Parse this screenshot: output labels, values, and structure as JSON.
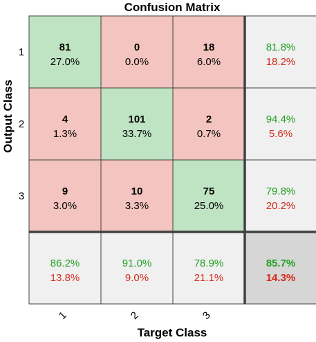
{
  "chart_data": {
    "type": "heatmap",
    "title": "Confusion Matrix",
    "xlabel": "Target Class",
    "ylabel": "Output Class",
    "classes": [
      "1",
      "2",
      "3"
    ],
    "cells": [
      [
        {
          "count": "81",
          "pct": "27.0%"
        },
        {
          "count": "0",
          "pct": "0.0%"
        },
        {
          "count": "18",
          "pct": "6.0%"
        }
      ],
      [
        {
          "count": "4",
          "pct": "1.3%"
        },
        {
          "count": "101",
          "pct": "33.7%"
        },
        {
          "count": "2",
          "pct": "0.7%"
        }
      ],
      [
        {
          "count": "9",
          "pct": "3.0%"
        },
        {
          "count": "10",
          "pct": "3.3%"
        },
        {
          "count": "75",
          "pct": "25.0%"
        }
      ]
    ],
    "row_summary": [
      {
        "correct": "81.8%",
        "wrong": "18.2%"
      },
      {
        "correct": "94.4%",
        "wrong": "5.6%"
      },
      {
        "correct": "79.8%",
        "wrong": "20.2%"
      }
    ],
    "col_summary": [
      {
        "correct": "86.2%",
        "wrong": "13.8%"
      },
      {
        "correct": "91.0%",
        "wrong": "9.0%"
      },
      {
        "correct": "78.9%",
        "wrong": "21.1%"
      }
    ],
    "overall": {
      "correct": "85.7%",
      "wrong": "14.3%"
    },
    "colors": {
      "diagonal": "#bfe4c4",
      "off_diagonal": "#f4c4c0",
      "summary": "#f0f0f0",
      "overall": "#d6d6d6",
      "correct_text": "#22a022",
      "wrong_text": "#d42a1a",
      "grid": "#404040"
    }
  }
}
